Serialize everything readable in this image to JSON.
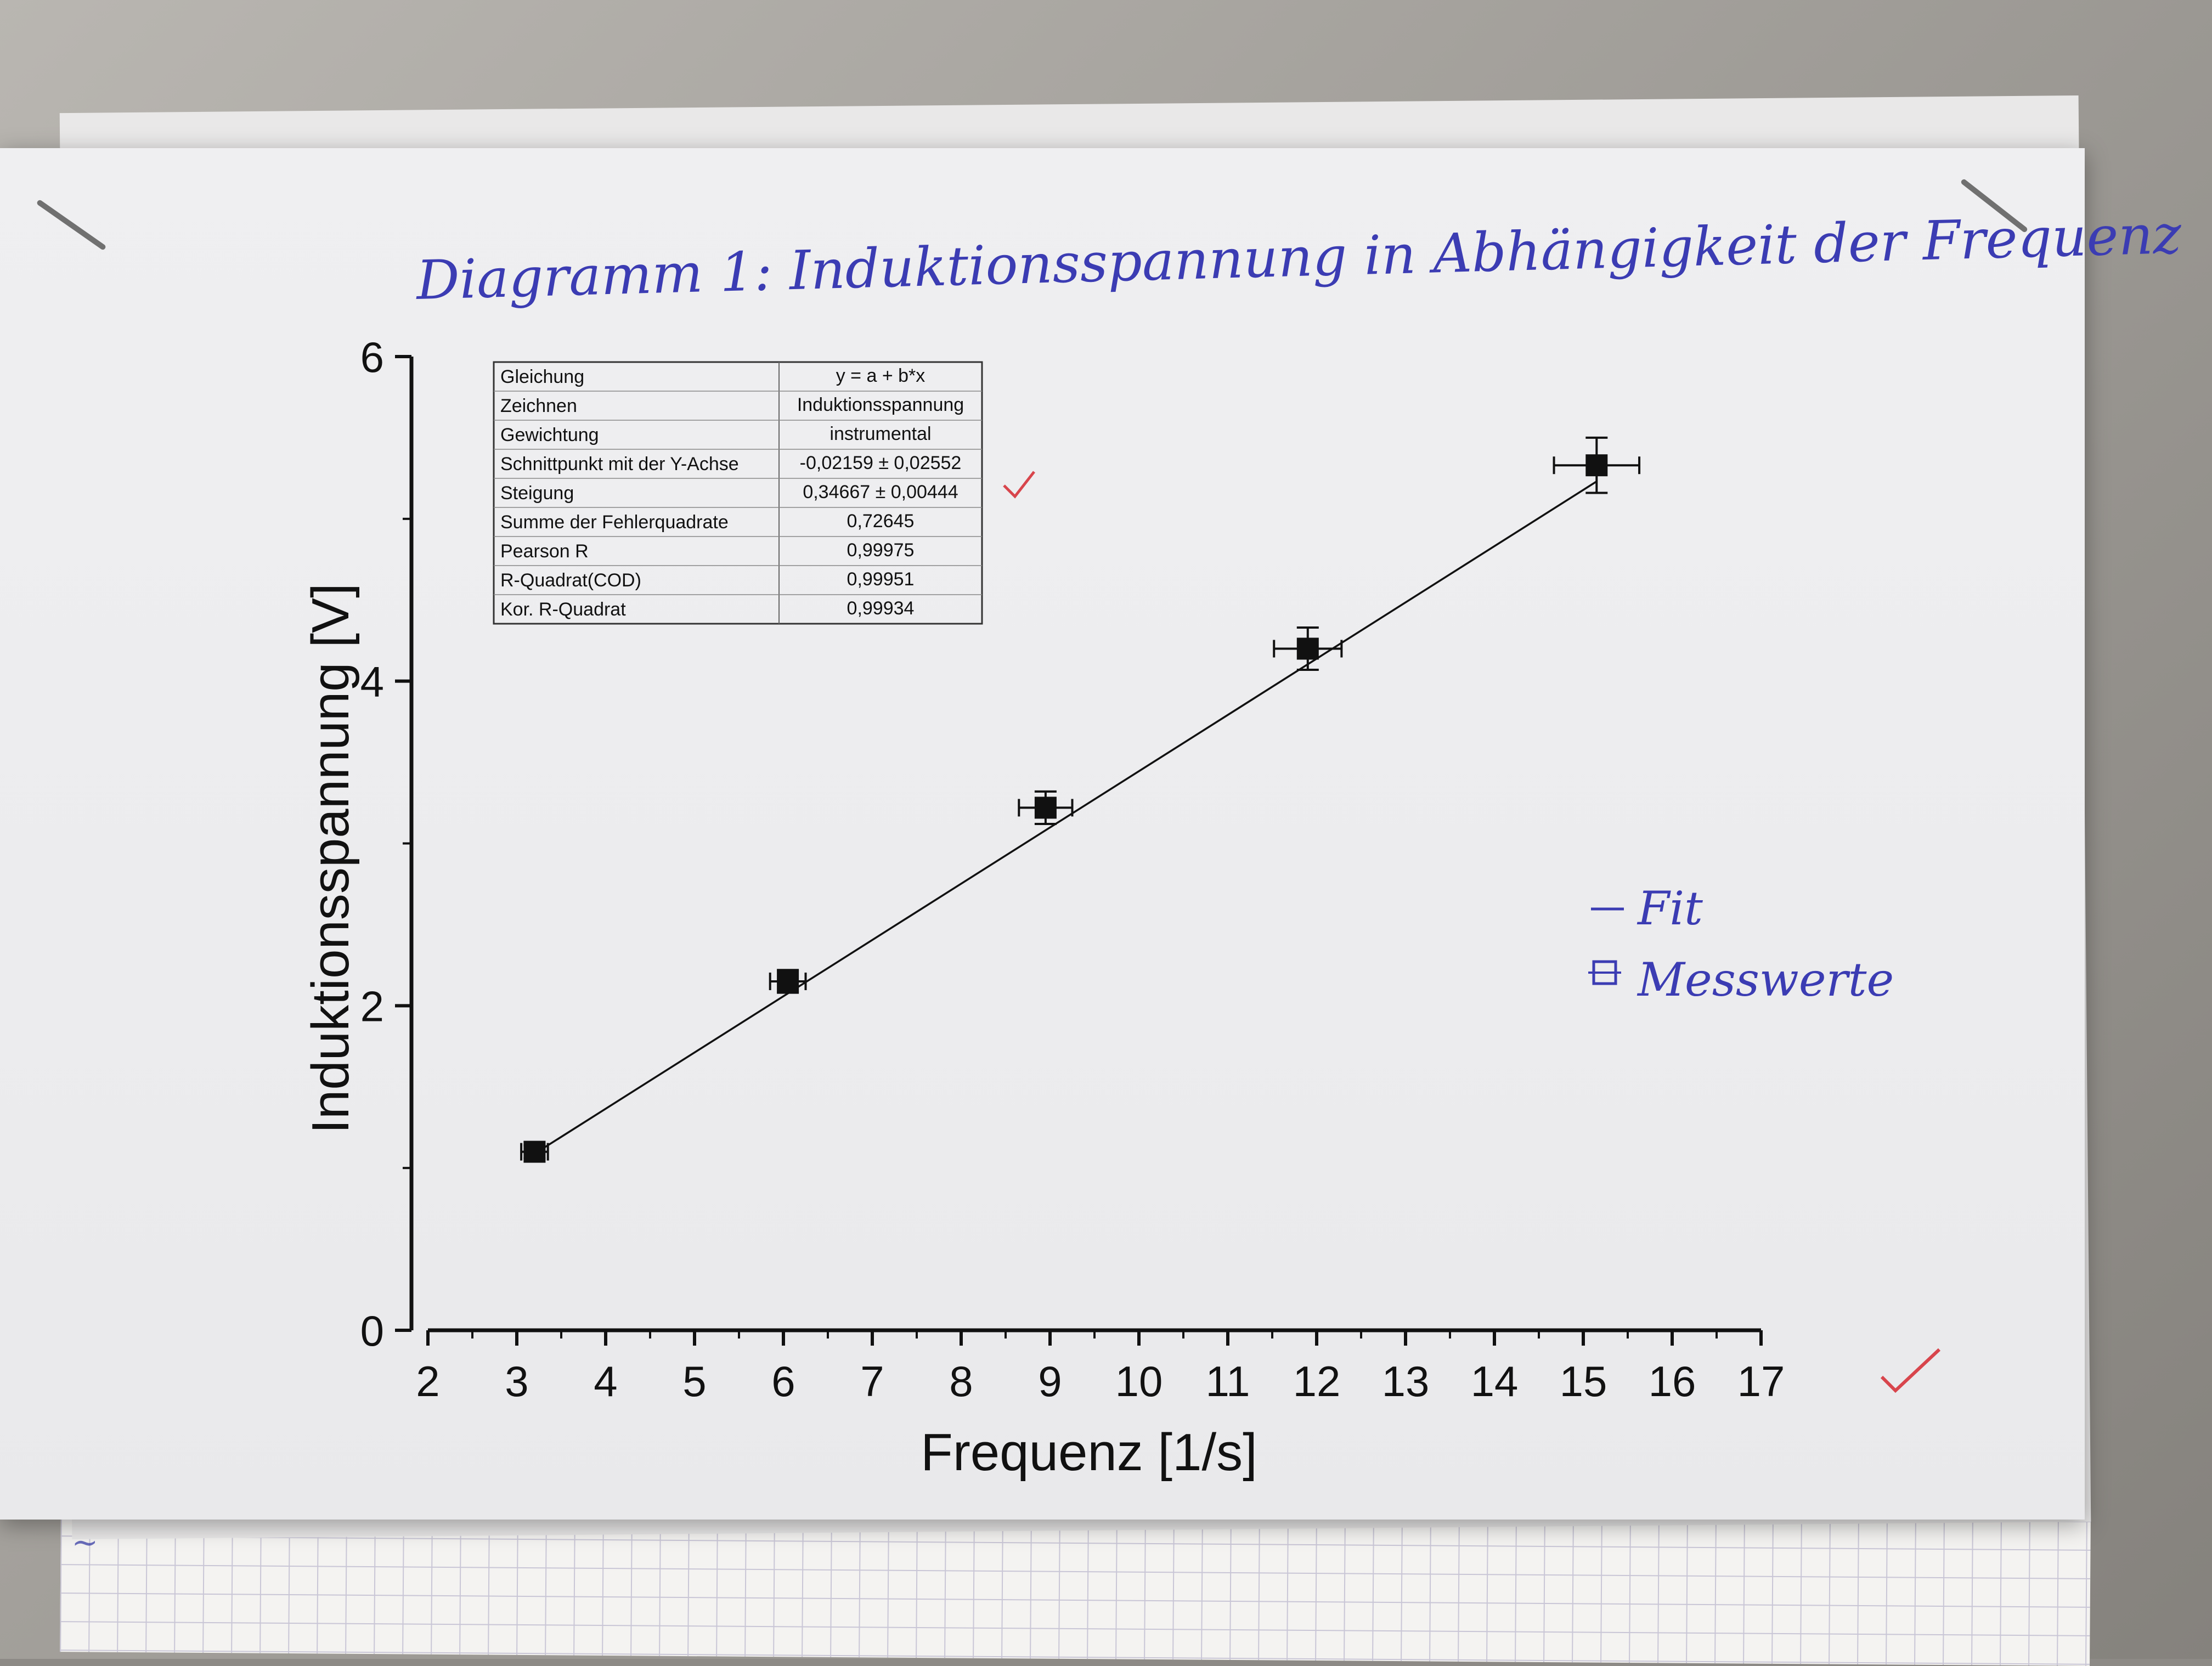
{
  "handwritten_title": "Diagramm 1: Induktionsspannung in Abhängigkeit der Frequenz",
  "handwritten_legend": [
    {
      "label": "Fit",
      "symbol": "line"
    },
    {
      "label": "Messwerte",
      "symbol": "errorbar-square"
    }
  ],
  "handwritten_ink_color": "#3b3cb3",
  "check_mark_color": "#d8454c",
  "stats_table": [
    {
      "label": "Gleichung",
      "value": "y = a + b*x"
    },
    {
      "label": "Zeichnen",
      "value": "Induktionsspannung"
    },
    {
      "label": "Gewichtung",
      "value": "instrumental"
    },
    {
      "label": "Schnittpunkt mit der Y-Achse",
      "value": "-0,02159 ± 0,02552"
    },
    {
      "label": "Steigung",
      "value": "0,34667 ± 0,00444"
    },
    {
      "label": "Summe der Fehlerquadrate",
      "value": "0,72645"
    },
    {
      "label": "Pearson R",
      "value": "0,99975"
    },
    {
      "label": "R-Quadrat(COD)",
      "value": "0,99951"
    },
    {
      "label": "Kor. R-Quadrat",
      "value": "0,99934"
    }
  ],
  "chart_data": {
    "type": "scatter",
    "xlabel": "Frequenz [1/s]",
    "ylabel": "Induktionsspannung [V]",
    "xlim": [
      2,
      17
    ],
    "ylim": [
      0,
      6
    ],
    "xticks": [
      "2",
      "3",
      "4",
      "5",
      "6",
      "7",
      "8",
      "9",
      "10",
      "11",
      "12",
      "13",
      "14",
      "15",
      "16",
      "17"
    ],
    "yticks": [
      "0",
      "2",
      "4",
      "6"
    ],
    "grid": false,
    "series": [
      {
        "points": [
          {
            "x": 3.2,
            "y": 1.1,
            "xerr": 0.15,
            "yerr": 0.04
          },
          {
            "x": 6.05,
            "y": 2.15,
            "xerr": 0.2,
            "yerr": 0.07
          },
          {
            "x": 8.95,
            "y": 3.22,
            "xerr": 0.3,
            "yerr": 0.1
          },
          {
            "x": 11.9,
            "y": 4.2,
            "xerr": 0.38,
            "yerr": 0.13
          },
          {
            "x": 15.15,
            "y": 5.33,
            "xerr": 0.48,
            "yerr": 0.17
          }
        ],
        "color": "#111111"
      }
    ],
    "fit": {
      "intercept": -0.02159,
      "slope": 0.34667,
      "x_range": [
        3.2,
        15.15
      ]
    }
  }
}
